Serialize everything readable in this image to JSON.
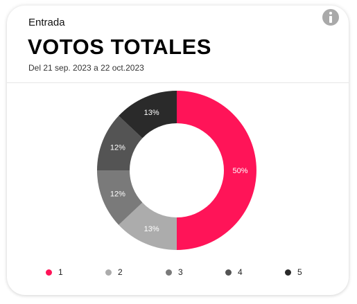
{
  "header": {
    "section": "Entrada",
    "title": "VOTOS TOTALES",
    "date_range": "Del 21 sep. 2023 a 22 oct.2023",
    "info_icon": "info-icon"
  },
  "chart_data": {
    "type": "pie",
    "variant": "donut",
    "categories": [
      "1",
      "2",
      "3",
      "4",
      "5"
    ],
    "values": [
      50,
      13,
      12,
      12,
      13
    ],
    "labels": [
      "50%",
      "13%",
      "12%",
      "12%",
      "13%"
    ],
    "colors": [
      "#ff1458",
      "#acacac",
      "#7a7a7a",
      "#545454",
      "#2a2a2a"
    ],
    "legend_position": "bottom"
  }
}
